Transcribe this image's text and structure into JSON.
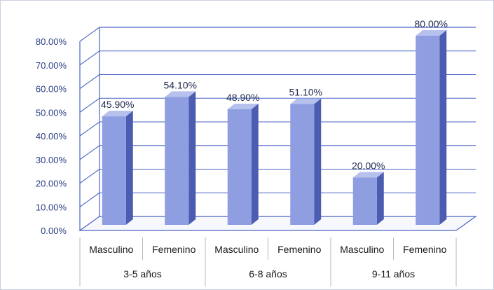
{
  "chart_data": {
    "type": "bar",
    "groups": [
      {
        "label": "3-5 años",
        "bars": [
          {
            "category": "Masculino",
            "value": 45.9,
            "label": "45.90%"
          },
          {
            "category": "Femenino",
            "value": 54.1,
            "label": "54.10%"
          }
        ]
      },
      {
        "label": "6-8 años",
        "bars": [
          {
            "category": "Masculino",
            "value": 48.9,
            "label": "48.90%"
          },
          {
            "category": "Femenino",
            "value": 51.1,
            "label": "51.10%"
          }
        ]
      },
      {
        "label": "9-11 años",
        "bars": [
          {
            "category": "Masculino",
            "value": 20.0,
            "label": "20.00%"
          },
          {
            "category": "Femenino",
            "value": 80.0,
            "label": "80.00%"
          }
        ]
      }
    ],
    "y_ticks": [
      "0.00%",
      "10.00%",
      "20.00%",
      "30.00%",
      "40.00%",
      "50.00%",
      "60.00%",
      "70.00%",
      "80.00%"
    ],
    "ylim": [
      0,
      80
    ],
    "grid": true,
    "legend": "none",
    "style": "3d-column",
    "colors": {
      "bar_front": "#8e9ee0",
      "bar_side": "#4c5cb1",
      "bar_top": "#b6c1ee",
      "grid": "#4a63c4",
      "tick_text": "#2a3f86"
    }
  }
}
